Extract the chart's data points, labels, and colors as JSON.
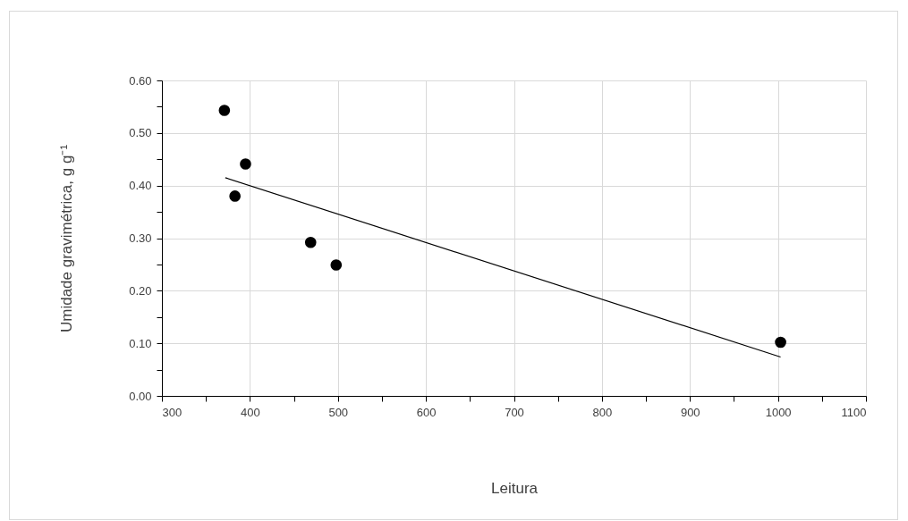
{
  "chart_data": {
    "type": "scatter",
    "xlabel": "Leitura",
    "ylabel": "Umidade gravimétrica, g g⁻¹",
    "xlim": [
      300,
      1100
    ],
    "xticks": [
      300,
      {
        "value": 350,
        "label": null
      },
      400,
      {
        "value": 450,
        "label": null
      },
      500,
      {
        "value": 550,
        "label": null
      },
      600,
      {
        "value": 650,
        "label": null
      },
      700,
      {
        "value": 750,
        "label": null
      },
      800,
      {
        "value": 850,
        "label": null
      },
      900,
      {
        "value": 950,
        "label": null
      },
      1000,
      {
        "value": 1050,
        "label": null
      },
      1100
    ],
    "ylim": [
      0,
      0.6
    ],
    "yticks": [
      {
        "value": 0,
        "label": "0.00"
      },
      {
        "value": 0.05,
        "label": null
      },
      {
        "value": 0.1,
        "label": "0.10"
      },
      {
        "value": 0.15,
        "label": null
      },
      {
        "value": 0.2,
        "label": "0.20"
      },
      {
        "value": 0.25,
        "label": null
      },
      {
        "value": 0.3,
        "label": "0.30"
      },
      {
        "value": 0.35,
        "label": null
      },
      {
        "value": 0.4,
        "label": "0.40"
      },
      {
        "value": 0.45,
        "label": null
      },
      {
        "value": 0.5,
        "label": "0.50"
      },
      {
        "value": 0.55,
        "label": null
      },
      {
        "value": 0.6,
        "label": "0.60"
      }
    ],
    "grid": true,
    "marker": "circle",
    "series": [
      {
        "color": "#000000",
        "x": [
          371,
          395,
          383,
          469,
          498,
          1003
        ],
        "values": [
          0.543,
          0.441,
          0.38,
          0.292,
          0.249,
          0.102
        ]
      },
      {
        "type": "line",
        "color": "#000000",
        "marker": "none",
        "line_style": "solid",
        "x": [
          372,
          1003
        ],
        "values": [
          0.415,
          0.074
        ]
      }
    ]
  }
}
